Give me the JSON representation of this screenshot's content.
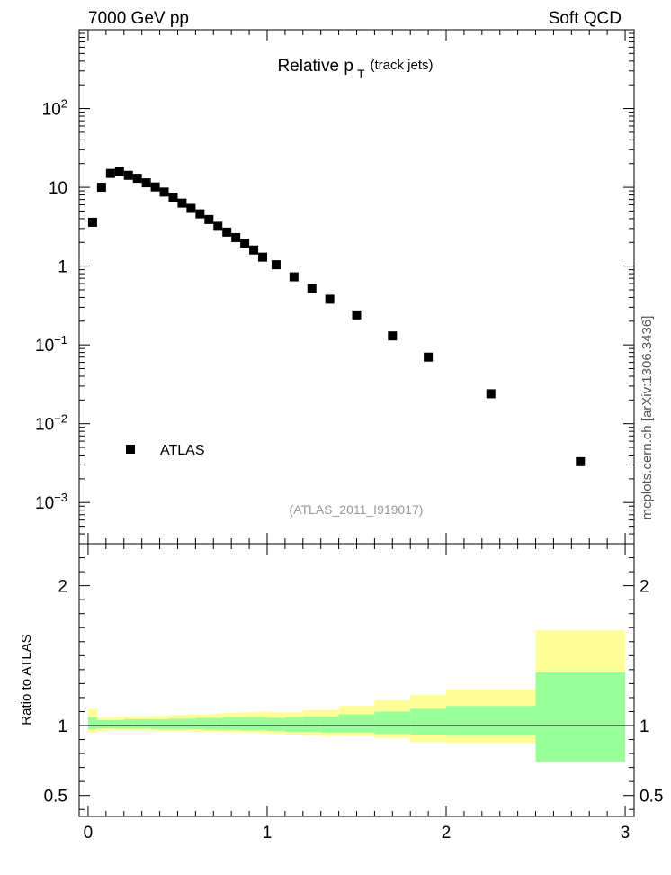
{
  "header": {
    "left": "7000 GeV pp",
    "right": "Soft QCD"
  },
  "side_label": "mcplots.cern.ch [arXiv:1306.3436]",
  "chart_data": [
    {
      "type": "scatter",
      "title": "Relative p",
      "title_sub": "T",
      "title_suffix": "(track jets)",
      "analysis_id": "(ATLAS_2011_I919017)",
      "y_scale": "log",
      "xlim": [
        -0.05,
        3.05
      ],
      "ylim": [
        0.0003,
        1000
      ],
      "y_ticks": [
        {
          "value": 0.001,
          "base": "10",
          "exp": "−3"
        },
        {
          "value": 0.01,
          "base": "10",
          "exp": "−2"
        },
        {
          "value": 0.1,
          "base": "10",
          "exp": "−1"
        },
        {
          "value": 1,
          "label": "1"
        },
        {
          "value": 10,
          "label": "10"
        },
        {
          "value": 100,
          "base": "10",
          "exp": "2"
        }
      ],
      "legend": {
        "label": "ATLAS",
        "position": "bottom-left"
      },
      "series": [
        {
          "name": "ATLAS",
          "color": "#000000",
          "marker": "square",
          "x": [
            0.025,
            0.075,
            0.125,
            0.175,
            0.225,
            0.275,
            0.325,
            0.375,
            0.425,
            0.475,
            0.525,
            0.575,
            0.625,
            0.675,
            0.725,
            0.775,
            0.825,
            0.875,
            0.925,
            0.975,
            1.05,
            1.15,
            1.25,
            1.35,
            1.5,
            1.7,
            1.9,
            2.25,
            2.75
          ],
          "y": [
            3.6,
            10.0,
            15.0,
            15.8,
            14.2,
            13.0,
            11.4,
            10.1,
            8.7,
            7.5,
            6.3,
            5.4,
            4.6,
            3.9,
            3.2,
            2.7,
            2.3,
            1.95,
            1.6,
            1.3,
            1.04,
            0.73,
            0.52,
            0.38,
            0.24,
            0.13,
            0.07,
            0.024,
            0.0033
          ]
        }
      ]
    },
    {
      "type": "area",
      "ylabel": "Ratio to ATLAS",
      "xlim": [
        -0.05,
        3.05
      ],
      "ylim": [
        0.35,
        2.3
      ],
      "y_ticks": [
        "0.5",
        "1",
        "2"
      ],
      "x_ticks": [
        "0",
        "1",
        "2",
        "3"
      ],
      "reference_line": 1,
      "bands": {
        "edges": [
          0.0,
          0.05,
          0.1,
          0.15,
          0.2,
          0.25,
          0.3,
          0.35,
          0.4,
          0.45,
          0.5,
          0.55,
          0.6,
          0.65,
          0.7,
          0.75,
          0.8,
          0.85,
          0.9,
          0.95,
          1.0,
          1.1,
          1.2,
          1.3,
          1.4,
          1.6,
          1.8,
          2.0,
          2.5,
          3.0
        ],
        "outer": {
          "color": "#ffff99",
          "low": [
            0.95,
            0.96,
            0.965,
            0.965,
            0.965,
            0.965,
            0.965,
            0.96,
            0.96,
            0.96,
            0.96,
            0.96,
            0.955,
            0.955,
            0.955,
            0.955,
            0.95,
            0.95,
            0.95,
            0.945,
            0.94,
            0.935,
            0.93,
            0.925,
            0.925,
            0.91,
            0.88,
            0.875,
            0.875
          ],
          "high": [
            1.12,
            1.06,
            1.06,
            1.065,
            1.065,
            1.065,
            1.065,
            1.07,
            1.07,
            1.075,
            1.075,
            1.08,
            1.08,
            1.08,
            1.085,
            1.09,
            1.09,
            1.095,
            1.095,
            1.1,
            1.095,
            1.095,
            1.11,
            1.11,
            1.14,
            1.18,
            1.22,
            1.26,
            1.68
          ]
        },
        "inner": {
          "color": "#99ff99",
          "low": [
            0.975,
            0.98,
            0.98,
            0.98,
            0.98,
            0.98,
            0.98,
            0.975,
            0.975,
            0.975,
            0.975,
            0.975,
            0.975,
            0.97,
            0.97,
            0.97,
            0.97,
            0.965,
            0.965,
            0.965,
            0.96,
            0.955,
            0.955,
            0.95,
            0.95,
            0.94,
            0.935,
            0.93,
            0.74
          ],
          "high": [
            1.06,
            1.04,
            1.04,
            1.04,
            1.045,
            1.045,
            1.045,
            1.045,
            1.045,
            1.05,
            1.05,
            1.05,
            1.055,
            1.055,
            1.055,
            1.06,
            1.06,
            1.06,
            1.06,
            1.06,
            1.055,
            1.06,
            1.065,
            1.065,
            1.08,
            1.1,
            1.12,
            1.14,
            1.38
          ]
        }
      }
    }
  ]
}
